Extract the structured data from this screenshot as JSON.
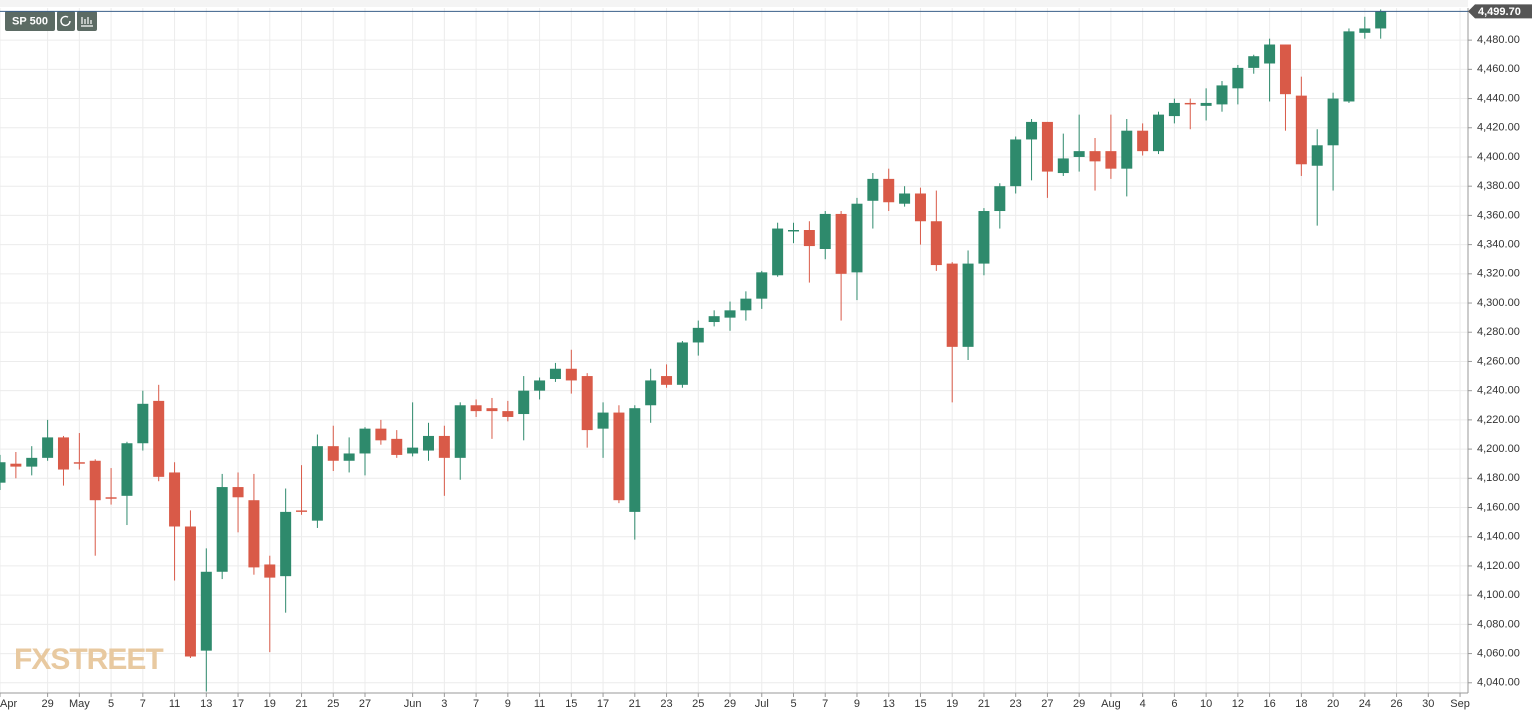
{
  "chart_data": {
    "type": "candlestick",
    "symbol": "SP 500",
    "watermark": "FXSTREET",
    "last_label": "4,499.70",
    "up_color": "#2e8a6c",
    "down_color": "#d95a48",
    "grid": true,
    "categories": [
      "Apr",
      null,
      null,
      "29",
      null,
      "May",
      null,
      "5",
      null,
      "7",
      null,
      "11",
      null,
      "13",
      null,
      "17",
      null,
      "19",
      null,
      "21",
      null,
      "25",
      null,
      "27",
      null,
      null,
      "Jun",
      null,
      "3",
      null,
      "7",
      null,
      "9",
      null,
      "11",
      null,
      "15",
      null,
      "17",
      null,
      "21",
      null,
      "23",
      null,
      "25",
      null,
      "29",
      null,
      "Jul",
      null,
      "5",
      null,
      "7",
      null,
      "9",
      null,
      "13",
      null,
      "15",
      null,
      "19",
      null,
      "21",
      null,
      "23",
      null,
      "27",
      null,
      "29",
      null,
      "Aug",
      null,
      "4",
      null,
      "6",
      null,
      "10",
      null,
      "12",
      null,
      "16",
      null,
      "18",
      null,
      "20",
      null,
      "24",
      null,
      "26",
      null,
      "30",
      null,
      "Sep"
    ],
    "open": [
      4177,
      4190,
      4188,
      4194,
      4208,
      4191,
      4192,
      4167,
      4168,
      4204,
      4233,
      4184,
      4147,
      4062,
      4116,
      4174,
      4165,
      4121,
      4113,
      4158,
      4151,
      4202,
      4192,
      4197,
      4214,
      4207,
      4197,
      4199,
      4209,
      4194,
      4230,
      4228,
      4226,
      4224,
      4240,
      4248,
      4255,
      4250,
      4214,
      4225,
      4157,
      4230,
      4250,
      4244,
      4273,
      4287,
      4290,
      4295,
      4303,
      4319,
      4349,
      4350,
      4337,
      4361,
      4321,
      4370,
      4385,
      4368,
      4375,
      4356,
      4327,
      4270,
      4327,
      4363,
      4380,
      4412,
      4424,
      4389,
      4400,
      4404,
      4404,
      4392,
      4418,
      4404,
      4428,
      4437,
      4435,
      4436,
      4447,
      4461,
      4464,
      4477,
      4442,
      4394,
      4408,
      4438,
      4485,
      4488,
      null,
      null,
      null,
      null,
      null
    ],
    "high": [
      4196,
      4198,
      4202,
      4220,
      4209,
      4211,
      4193,
      4187,
      4205,
      4240,
      4244,
      4191,
      4158,
      4132,
      4183,
      4184,
      4183,
      4127,
      4173,
      4189,
      4210,
      4216,
      4208,
      4215,
      4220,
      4213,
      4232,
      4218,
      4216,
      4232,
      4234,
      4235,
      4233,
      4250,
      4249,
      4259,
      4268,
      4252,
      4232,
      4230,
      4230,
      4255,
      4258,
      4274,
      4288,
      4295,
      4301,
      4308,
      4322,
      4355,
      4355,
      4356,
      4363,
      4363,
      4372,
      4389,
      4392,
      4380,
      4379,
      4377,
      4328,
      4336,
      4365,
      4382,
      4414,
      4426,
      4424,
      4416,
      4429,
      4413,
      4429,
      4426,
      4423,
      4431,
      4440,
      4440,
      4447,
      4452,
      4463,
      4470,
      4481,
      4477,
      4455,
      4419,
      4444,
      4488,
      4496,
      4501,
      null,
      null,
      null,
      null,
      null
    ],
    "low": [
      4172,
      4180,
      4182,
      4192,
      4175,
      4186,
      4127,
      4162,
      4148,
      4199,
      4178,
      4110,
      4057,
      4034,
      4111,
      4143,
      4114,
      4061,
      4088,
      4155,
      4146,
      4185,
      4184,
      4182,
      4203,
      4194,
      4195,
      4192,
      4168,
      4179,
      4222,
      4207,
      4219,
      4206,
      4234,
      4246,
      4238,
      4201,
      4194,
      4163,
      4138,
      4218,
      4242,
      4242,
      4264,
      4284,
      4281,
      4288,
      4296,
      4318,
      4341,
      4314,
      4330,
      4288,
      4302,
      4351,
      4363,
      4366,
      4340,
      4322,
      4232,
      4261,
      4319,
      4351,
      4375,
      4384,
      4372,
      4387,
      4390,
      4377,
      4385,
      4373,
      4401,
      4402,
      4423,
      4419,
      4425,
      4431,
      4436,
      4457,
      4438,
      4418,
      4387,
      4353,
      4377,
      4437,
      4481,
      4481,
      null,
      null,
      null,
      null,
      null
    ],
    "close": [
      4191,
      4188,
      4194,
      4208,
      4186,
      4190,
      4165,
      4166,
      4204,
      4231,
      4181,
      4147,
      4058,
      4116,
      4174,
      4167,
      4119,
      4112,
      4157,
      4157,
      4202,
      4192,
      4197,
      4214,
      4206,
      4196,
      4201,
      4209,
      4194,
      4230,
      4226,
      4226,
      4222,
      4240,
      4247,
      4255,
      4247,
      4213,
      4225,
      4165,
      4228,
      4247,
      4244,
      4273,
      4283,
      4291,
      4295,
      4303,
      4321,
      4351,
      4350,
      4339,
      4361,
      4320,
      4368,
      4385,
      4369,
      4375,
      4356,
      4326,
      4270,
      4327,
      4363,
      4380,
      4412,
      4424,
      4390,
      4399,
      4404,
      4397,
      4392,
      4418,
      4404,
      4429,
      4437,
      4436,
      4437,
      4449,
      4461,
      4469,
      4477,
      4443,
      4395,
      4408,
      4440,
      4486,
      4488,
      4499.7,
      null,
      null,
      null,
      null,
      null
    ],
    "ylim": [
      4033,
      4502
    ],
    "yticks": [
      {
        "value": 4040,
        "label": "4,040.00"
      },
      {
        "value": 4060,
        "label": "4,060.00"
      },
      {
        "value": 4080,
        "label": "4,080.00"
      },
      {
        "value": 4100,
        "label": "4,100.00"
      },
      {
        "value": 4120,
        "label": "4,120.00"
      },
      {
        "value": 4140,
        "label": "4,140.00"
      },
      {
        "value": 4160,
        "label": "4,160.00"
      },
      {
        "value": 4180,
        "label": "4,180.00"
      },
      {
        "value": 4200,
        "label": "4,200.00"
      },
      {
        "value": 4220,
        "label": "4,220.00"
      },
      {
        "value": 4240,
        "label": "4,240.00"
      },
      {
        "value": 4260,
        "label": "4,260.00"
      },
      {
        "value": 4280,
        "label": "4,280.00"
      },
      {
        "value": 4300,
        "label": "4,300.00"
      },
      {
        "value": 4320,
        "label": "4,320.00"
      },
      {
        "value": 4340,
        "label": "4,340.00"
      },
      {
        "value": 4360,
        "label": "4,360.00"
      },
      {
        "value": 4380,
        "label": "4,380.00"
      },
      {
        "value": 4400,
        "label": "4,400.00"
      },
      {
        "value": 4420,
        "label": "4,420.00"
      },
      {
        "value": 4440,
        "label": "4,440.00"
      },
      {
        "value": 4460,
        "label": "4,460.00"
      },
      {
        "value": 4480,
        "label": "4,480.00"
      }
    ]
  }
}
